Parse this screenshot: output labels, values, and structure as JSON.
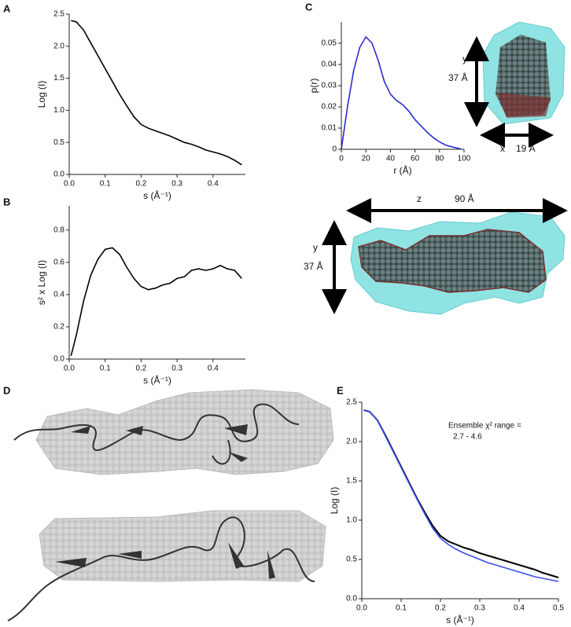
{
  "panel_labels": [
    "A",
    "B",
    "C",
    "D",
    "E"
  ],
  "models": {
    "side_view": {
      "y_label": "y",
      "y_size": "37 Å",
      "x_label": "x",
      "x_size": "19 Å"
    },
    "top_view": {
      "z_label": "z",
      "z_size": "90 Å",
      "y_label": "y",
      "y_size": "37 Å"
    }
  },
  "chart_data": [
    {
      "type": "line",
      "xlabel": "s  (Å⁻¹)",
      "ylabel": "Log (I)",
      "x": [
        0.005,
        0.02,
        0.04,
        0.06,
        0.08,
        0.1,
        0.12,
        0.14,
        0.16,
        0.18,
        0.2,
        0.22,
        0.24,
        0.26,
        0.28,
        0.3,
        0.32,
        0.34,
        0.36,
        0.38,
        0.4,
        0.42,
        0.44,
        0.46,
        0.48
      ],
      "series": [
        {
          "color": "#000000",
          "values": [
            2.4,
            2.38,
            2.25,
            2.05,
            1.85,
            1.65,
            1.45,
            1.25,
            1.07,
            0.9,
            0.78,
            0.72,
            0.68,
            0.64,
            0.6,
            0.55,
            0.5,
            0.47,
            0.43,
            0.38,
            0.35,
            0.32,
            0.28,
            0.22,
            0.15
          ]
        }
      ],
      "xlim": [
        0,
        0.49
      ],
      "xticks": [
        {
          "value": 0,
          "label": "0.0"
        },
        0.1,
        0.2,
        0.3,
        0.4
      ],
      "ylim": [
        0,
        2.5
      ],
      "yticks": [
        {
          "value": 0,
          "label": "0.0"
        },
        0.5,
        {
          "value": 1,
          "label": "1.0"
        },
        1.5,
        {
          "value": 2,
          "label": "2.0"
        },
        2.5
      ]
    },
    {
      "type": "line",
      "xlabel": "s  (Å⁻¹)",
      "ylabel": "s² x Log (I)",
      "x": [
        0.005,
        0.02,
        0.04,
        0.06,
        0.08,
        0.1,
        0.12,
        0.14,
        0.16,
        0.18,
        0.2,
        0.22,
        0.24,
        0.26,
        0.28,
        0.3,
        0.32,
        0.34,
        0.36,
        0.38,
        0.4,
        0.42,
        0.44,
        0.46,
        0.48
      ],
      "series": [
        {
          "color": "#000000",
          "values": [
            0.02,
            0.15,
            0.36,
            0.52,
            0.62,
            0.68,
            0.69,
            0.65,
            0.57,
            0.5,
            0.45,
            0.43,
            0.44,
            0.46,
            0.47,
            0.5,
            0.51,
            0.55,
            0.56,
            0.55,
            0.56,
            0.58,
            0.56,
            0.55,
            0.5
          ]
        }
      ],
      "xlim": [
        0,
        0.49
      ],
      "xticks": [
        {
          "value": 0,
          "label": "0.0"
        },
        0.1,
        0.2,
        0.3,
        0.4
      ],
      "ylim": [
        0,
        0.95
      ],
      "yticks": [
        {
          "value": 0,
          "label": "0.0"
        },
        0.2,
        0.4,
        0.6,
        0.8
      ]
    },
    {
      "type": "line",
      "xlabel": "r (Å)",
      "ylabel": "p(r)",
      "x": [
        0,
        5,
        10,
        15,
        20,
        25,
        30,
        35,
        40,
        45,
        50,
        55,
        60,
        65,
        70,
        75,
        80,
        85,
        90,
        95,
        98
      ],
      "series": [
        {
          "color": "#2b2bd0",
          "values": [
            0,
            0.02,
            0.037,
            0.048,
            0.053,
            0.05,
            0.042,
            0.032,
            0.026,
            0.023,
            0.021,
            0.018,
            0.014,
            0.011,
            0.008,
            0.0055,
            0.0035,
            0.002,
            0.0012,
            0.0005,
            0
          ]
        }
      ],
      "xlim": [
        0,
        100
      ],
      "xticks": [
        0,
        20,
        40,
        60,
        80,
        100
      ],
      "ylim": [
        0,
        0.06
      ],
      "yticks": [
        0,
        0.01,
        0.02,
        0.03,
        0.04,
        0.05
      ]
    },
    {
      "type": "line",
      "xlabel": "s  (Å⁻¹)",
      "ylabel": "Log (I)",
      "annotation": [
        "Ensemble χ² range =",
        "2.7 - 4.6"
      ],
      "x": [
        0.005,
        0.02,
        0.04,
        0.06,
        0.08,
        0.1,
        0.12,
        0.14,
        0.16,
        0.18,
        0.2,
        0.22,
        0.24,
        0.26,
        0.28,
        0.3,
        0.32,
        0.34,
        0.36,
        0.38,
        0.4,
        0.42,
        0.44,
        0.46,
        0.48,
        0.5
      ],
      "series": [
        {
          "color": "#000000",
          "values": [
            2.4,
            2.38,
            2.27,
            2.08,
            1.88,
            1.68,
            1.48,
            1.28,
            1.1,
            0.93,
            0.8,
            0.73,
            0.69,
            0.65,
            0.62,
            0.58,
            0.55,
            0.52,
            0.49,
            0.46,
            0.43,
            0.4,
            0.37,
            0.33,
            0.3,
            0.27
          ]
        },
        {
          "color": "#3a4ee8",
          "values": [
            2.4,
            2.38,
            2.27,
            2.07,
            1.87,
            1.67,
            1.47,
            1.27,
            1.08,
            0.9,
            0.77,
            0.69,
            0.63,
            0.58,
            0.54,
            0.5,
            0.46,
            0.43,
            0.4,
            0.37,
            0.34,
            0.31,
            0.28,
            0.26,
            0.24,
            0.22
          ]
        }
      ],
      "xlim": [
        0,
        0.5
      ],
      "xticks": [
        {
          "value": 0,
          "label": "0.0"
        },
        0.1,
        0.2,
        0.3,
        0.4,
        0.5
      ],
      "ylim": [
        0,
        2.5
      ],
      "yticks": [
        {
          "value": 0,
          "label": "0.0"
        },
        0.5,
        {
          "value": 1,
          "label": "1.0"
        },
        1.5,
        {
          "value": 2,
          "label": "2.0"
        },
        2.5
      ]
    }
  ]
}
